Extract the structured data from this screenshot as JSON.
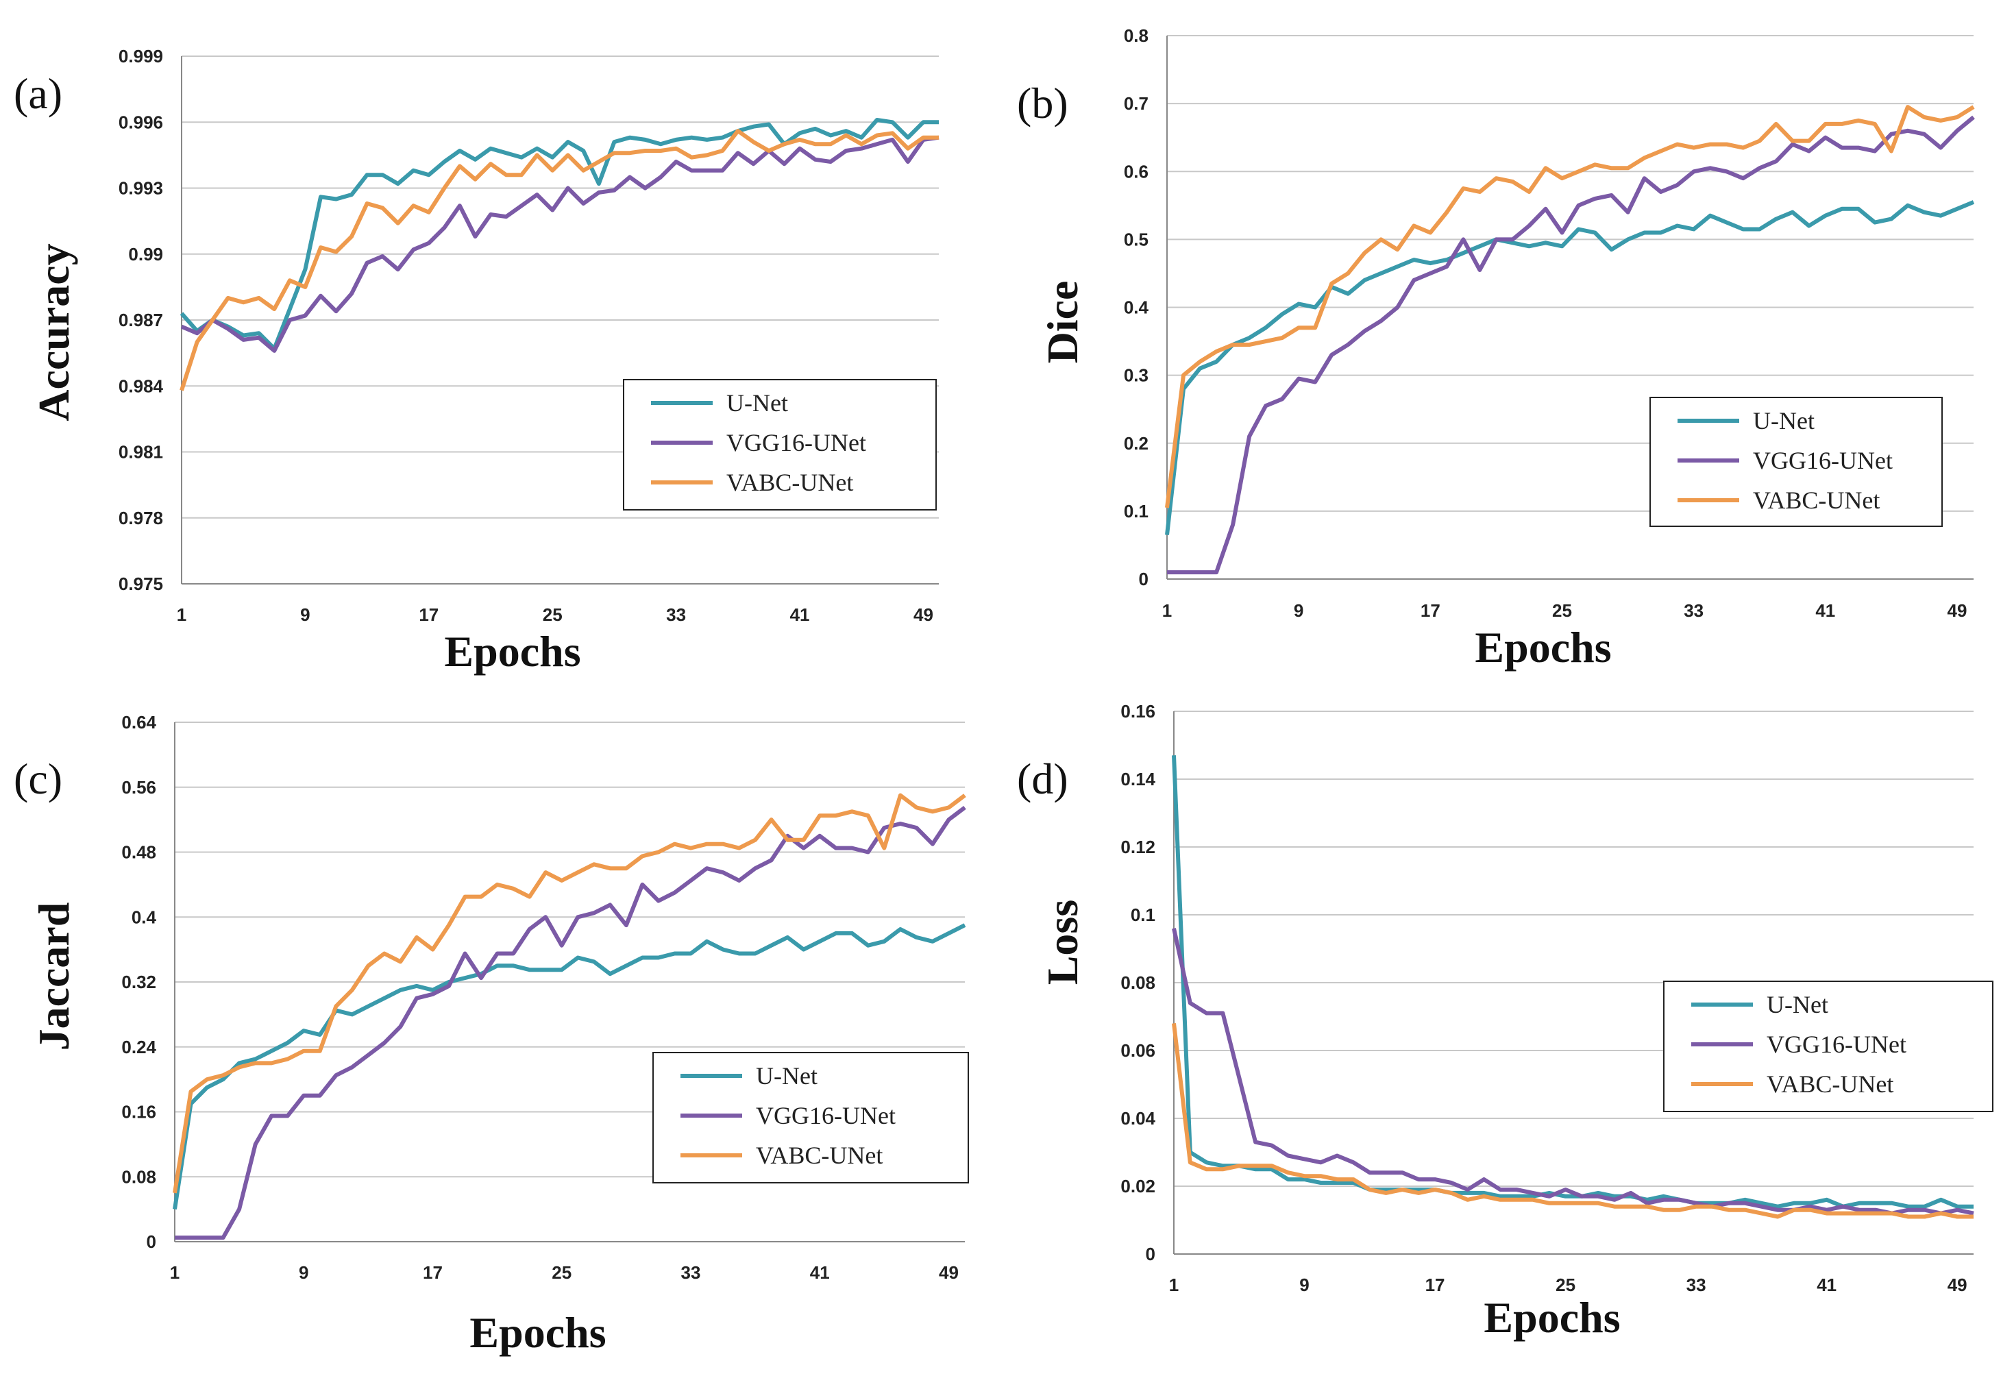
{
  "colors": {
    "U-Net": "#3a9aab",
    "VGG16-UNet": "#7b5aa6",
    "VABC-UNet": "#ee9a4d"
  },
  "chart_data": [
    {
      "type": "line",
      "panel": "(a)",
      "xlabel": "Epochs",
      "ylabel": "Accuracy",
      "xlim": [
        1,
        50
      ],
      "ylim": [
        0.975,
        0.999
      ],
      "xticks": [
        "1",
        "9",
        "17",
        "25",
        "33",
        "41",
        "49"
      ],
      "xtick_values": [
        1,
        9,
        17,
        25,
        33,
        41,
        49
      ],
      "yticks": [
        "0.975",
        "0.978",
        "0.981",
        "0.984",
        "0.987",
        "0.99",
        "0.993",
        "0.996",
        "0.999"
      ],
      "legend": "lower-right",
      "series": [
        {
          "name": "U-Net",
          "values": [
            0.9873,
            0.9865,
            0.987,
            0.9867,
            0.9863,
            0.9864,
            0.9857,
            0.9875,
            0.9893,
            0.9926,
            0.9925,
            0.9927,
            0.9936,
            0.9936,
            0.9932,
            0.9938,
            0.9936,
            0.9942,
            0.9947,
            0.9943,
            0.9948,
            0.9946,
            0.9944,
            0.9948,
            0.9944,
            0.9951,
            0.9947,
            0.9932,
            0.9951,
            0.9953,
            0.9952,
            0.995,
            0.9952,
            0.9953,
            0.9952,
            0.9953,
            0.9956,
            0.9958,
            0.9959,
            0.995,
            0.9955,
            0.9957,
            0.9954,
            0.9956,
            0.9953,
            0.9961,
            0.996,
            0.9953,
            0.996,
            0.996
          ]
        },
        {
          "name": "VGG16-UNet",
          "values": [
            0.9867,
            0.9864,
            0.987,
            0.9866,
            0.9861,
            0.9862,
            0.9856,
            0.987,
            0.9872,
            0.9881,
            0.9874,
            0.9882,
            0.9896,
            0.9899,
            0.9893,
            0.9902,
            0.9905,
            0.9912,
            0.9922,
            0.9908,
            0.9918,
            0.9917,
            0.9922,
            0.9927,
            0.992,
            0.993,
            0.9923,
            0.9928,
            0.9929,
            0.9935,
            0.993,
            0.9935,
            0.9942,
            0.9938,
            0.9938,
            0.9938,
            0.9946,
            0.9941,
            0.9947,
            0.9941,
            0.9948,
            0.9943,
            0.9942,
            0.9947,
            0.9948,
            0.995,
            0.9952,
            0.9942,
            0.9952,
            0.9953
          ]
        },
        {
          "name": "VABC-UNet",
          "values": [
            0.9838,
            0.986,
            0.987,
            0.988,
            0.9878,
            0.988,
            0.9875,
            0.9888,
            0.9885,
            0.9903,
            0.9901,
            0.9908,
            0.9923,
            0.9921,
            0.9914,
            0.9922,
            0.9919,
            0.993,
            0.994,
            0.9934,
            0.9941,
            0.9936,
            0.9936,
            0.9945,
            0.9938,
            0.9945,
            0.9938,
            0.9942,
            0.9946,
            0.9946,
            0.9947,
            0.9947,
            0.9948,
            0.9944,
            0.9945,
            0.9947,
            0.9956,
            0.9951,
            0.9947,
            0.995,
            0.9952,
            0.995,
            0.995,
            0.9954,
            0.995,
            0.9954,
            0.9955,
            0.9948,
            0.9953,
            0.9953
          ]
        }
      ]
    },
    {
      "type": "line",
      "panel": "(b)",
      "xlabel": "Epochs",
      "ylabel": "Dice",
      "xlim": [
        1,
        50
      ],
      "ylim": [
        0,
        0.8
      ],
      "xticks": [
        "1",
        "9",
        "17",
        "25",
        "33",
        "41",
        "49"
      ],
      "xtick_values": [
        1,
        9,
        17,
        25,
        33,
        41,
        49
      ],
      "yticks": [
        "0",
        "0.1",
        "0.2",
        "0.3",
        "0.4",
        "0.5",
        "0.6",
        "0.7",
        "0.8"
      ],
      "legend": "lower-right",
      "series": [
        {
          "name": "U-Net",
          "values": [
            0.065,
            0.28,
            0.31,
            0.32,
            0.345,
            0.355,
            0.37,
            0.39,
            0.405,
            0.4,
            0.43,
            0.42,
            0.44,
            0.45,
            0.46,
            0.47,
            0.465,
            0.47,
            0.48,
            0.49,
            0.5,
            0.495,
            0.49,
            0.495,
            0.49,
            0.515,
            0.51,
            0.485,
            0.5,
            0.51,
            0.51,
            0.52,
            0.515,
            0.535,
            0.525,
            0.515,
            0.515,
            0.53,
            0.54,
            0.52,
            0.535,
            0.545,
            0.545,
            0.525,
            0.53,
            0.55,
            0.54,
            0.535,
            0.545,
            0.555
          ]
        },
        {
          "name": "VGG16-UNet",
          "values": [
            0.01,
            0.01,
            0.01,
            0.01,
            0.08,
            0.21,
            0.255,
            0.265,
            0.295,
            0.29,
            0.33,
            0.345,
            0.365,
            0.38,
            0.4,
            0.44,
            0.45,
            0.46,
            0.5,
            0.455,
            0.5,
            0.5,
            0.52,
            0.545,
            0.51,
            0.55,
            0.56,
            0.565,
            0.54,
            0.59,
            0.57,
            0.58,
            0.6,
            0.605,
            0.6,
            0.59,
            0.605,
            0.615,
            0.64,
            0.63,
            0.65,
            0.635,
            0.635,
            0.63,
            0.655,
            0.66,
            0.655,
            0.635,
            0.66,
            0.68
          ]
        },
        {
          "name": "VABC-UNet",
          "values": [
            0.105,
            0.3,
            0.32,
            0.335,
            0.345,
            0.345,
            0.35,
            0.355,
            0.37,
            0.37,
            0.435,
            0.45,
            0.48,
            0.5,
            0.485,
            0.52,
            0.51,
            0.54,
            0.575,
            0.57,
            0.59,
            0.585,
            0.57,
            0.605,
            0.59,
            0.6,
            0.61,
            0.605,
            0.605,
            0.62,
            0.63,
            0.64,
            0.635,
            0.64,
            0.64,
            0.635,
            0.645,
            0.67,
            0.645,
            0.645,
            0.67,
            0.67,
            0.675,
            0.67,
            0.63,
            0.695,
            0.68,
            0.675,
            0.68,
            0.695
          ]
        }
      ]
    },
    {
      "type": "line",
      "panel": "(c)",
      "xlabel": "Epochs",
      "ylabel": "Jaccard",
      "xlim": [
        1,
        50
      ],
      "ylim": [
        0,
        0.64
      ],
      "xticks": [
        "1",
        "9",
        "17",
        "25",
        "33",
        "41",
        "49"
      ],
      "xtick_values": [
        1,
        9,
        17,
        25,
        33,
        41,
        49
      ],
      "yticks": [
        "0",
        "0.08",
        "0.16",
        "0.24",
        "0.32",
        "0.4",
        "0.48",
        "0.56",
        "0.64"
      ],
      "legend": "lower-right",
      "series": [
        {
          "name": "U-Net",
          "values": [
            0.04,
            0.17,
            0.19,
            0.2,
            0.22,
            0.225,
            0.235,
            0.245,
            0.26,
            0.255,
            0.285,
            0.28,
            0.29,
            0.3,
            0.31,
            0.315,
            0.31,
            0.32,
            0.325,
            0.33,
            0.34,
            0.34,
            0.335,
            0.335,
            0.335,
            0.35,
            0.345,
            0.33,
            0.34,
            0.35,
            0.35,
            0.355,
            0.355,
            0.37,
            0.36,
            0.355,
            0.355,
            0.365,
            0.375,
            0.36,
            0.37,
            0.38,
            0.38,
            0.365,
            0.37,
            0.385,
            0.375,
            0.37,
            0.38,
            0.39
          ]
        },
        {
          "name": "VGG16-UNet",
          "values": [
            0.005,
            0.005,
            0.005,
            0.005,
            0.04,
            0.12,
            0.155,
            0.155,
            0.18,
            0.18,
            0.205,
            0.215,
            0.23,
            0.245,
            0.265,
            0.3,
            0.305,
            0.315,
            0.355,
            0.325,
            0.355,
            0.355,
            0.385,
            0.4,
            0.365,
            0.4,
            0.405,
            0.415,
            0.39,
            0.44,
            0.42,
            0.43,
            0.445,
            0.46,
            0.455,
            0.445,
            0.46,
            0.47,
            0.5,
            0.485,
            0.5,
            0.485,
            0.485,
            0.48,
            0.51,
            0.515,
            0.51,
            0.49,
            0.52,
            0.535
          ]
        },
        {
          "name": "VABC-UNet",
          "values": [
            0.06,
            0.185,
            0.2,
            0.205,
            0.215,
            0.22,
            0.22,
            0.225,
            0.235,
            0.235,
            0.29,
            0.31,
            0.34,
            0.355,
            0.345,
            0.375,
            0.36,
            0.39,
            0.425,
            0.425,
            0.44,
            0.435,
            0.425,
            0.455,
            0.445,
            0.455,
            0.465,
            0.46,
            0.46,
            0.475,
            0.48,
            0.49,
            0.485,
            0.49,
            0.49,
            0.485,
            0.495,
            0.52,
            0.495,
            0.495,
            0.525,
            0.525,
            0.53,
            0.525,
            0.485,
            0.55,
            0.535,
            0.53,
            0.535,
            0.55
          ]
        }
      ]
    },
    {
      "type": "line",
      "panel": "(d)",
      "xlabel": "Epochs",
      "ylabel": "Loss",
      "xlim": [
        1,
        50
      ],
      "ylim": [
        0,
        0.16
      ],
      "xticks": [
        "1",
        "9",
        "17",
        "25",
        "33",
        "41",
        "49"
      ],
      "xtick_values": [
        1,
        9,
        17,
        25,
        33,
        41,
        49
      ],
      "yticks": [
        "0",
        "0.02",
        "0.04",
        "0.06",
        "0.08",
        "0.1",
        "0.12",
        "0.14",
        "0.16"
      ],
      "legend": "right",
      "series": [
        {
          "name": "U-Net",
          "values": [
            0.147,
            0.03,
            0.027,
            0.026,
            0.026,
            0.025,
            0.025,
            0.022,
            0.022,
            0.021,
            0.021,
            0.021,
            0.019,
            0.019,
            0.019,
            0.019,
            0.019,
            0.018,
            0.018,
            0.018,
            0.017,
            0.017,
            0.017,
            0.018,
            0.017,
            0.017,
            0.018,
            0.017,
            0.017,
            0.016,
            0.017,
            0.016,
            0.015,
            0.015,
            0.015,
            0.016,
            0.015,
            0.014,
            0.015,
            0.015,
            0.016,
            0.014,
            0.015,
            0.015,
            0.015,
            0.014,
            0.014,
            0.016,
            0.014,
            0.014
          ]
        },
        {
          "name": "VGG16-UNet",
          "values": [
            0.096,
            0.074,
            0.071,
            0.071,
            0.052,
            0.033,
            0.032,
            0.029,
            0.028,
            0.027,
            0.029,
            0.027,
            0.024,
            0.024,
            0.024,
            0.022,
            0.022,
            0.021,
            0.019,
            0.022,
            0.019,
            0.019,
            0.018,
            0.017,
            0.019,
            0.017,
            0.017,
            0.016,
            0.018,
            0.015,
            0.016,
            0.016,
            0.015,
            0.014,
            0.015,
            0.015,
            0.014,
            0.013,
            0.013,
            0.014,
            0.013,
            0.014,
            0.013,
            0.013,
            0.012,
            0.013,
            0.013,
            0.012,
            0.013,
            0.012
          ]
        },
        {
          "name": "VABC-UNet",
          "values": [
            0.068,
            0.027,
            0.025,
            0.025,
            0.026,
            0.026,
            0.026,
            0.024,
            0.023,
            0.023,
            0.022,
            0.022,
            0.019,
            0.018,
            0.019,
            0.018,
            0.019,
            0.018,
            0.016,
            0.017,
            0.016,
            0.016,
            0.016,
            0.015,
            0.015,
            0.015,
            0.015,
            0.014,
            0.014,
            0.014,
            0.013,
            0.013,
            0.014,
            0.014,
            0.013,
            0.013,
            0.012,
            0.011,
            0.013,
            0.013,
            0.012,
            0.012,
            0.012,
            0.012,
            0.012,
            0.011,
            0.011,
            0.012,
            0.011,
            0.011
          ]
        }
      ]
    }
  ]
}
